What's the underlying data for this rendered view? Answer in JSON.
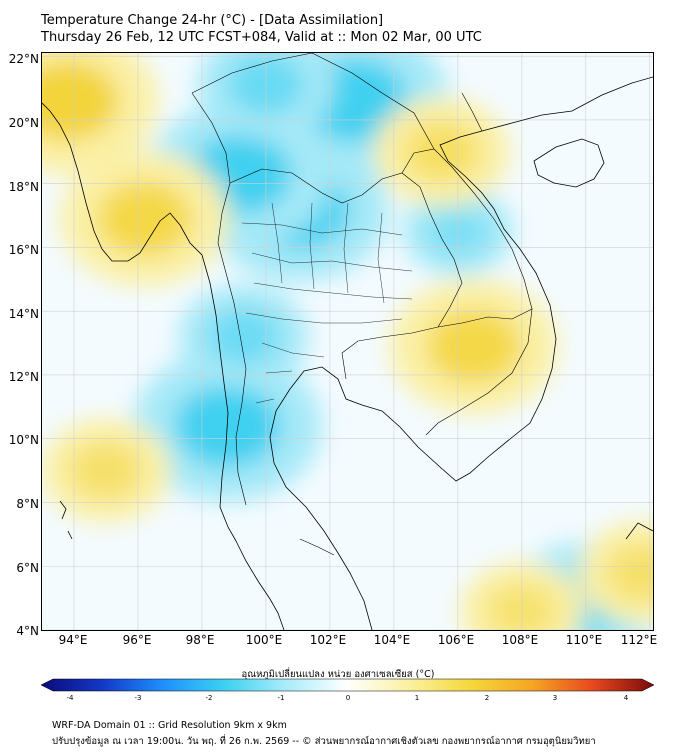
{
  "header": {
    "title": "Temperature Change 24-hr (°C) - [Data Assimilation]",
    "subtitle": "Thursday 26 Feb, 12 UTC FCST+084, Valid at :: Mon 02 Mar, 00 UTC"
  },
  "map": {
    "lat_labels": [
      "22°N",
      "20°N",
      "18°N",
      "16°N",
      "14°N",
      "12°N",
      "10°N",
      "8°N",
      "6°N",
      "4°N"
    ],
    "lon_labels": [
      "94°E",
      "96°E",
      "98°E",
      "100°E",
      "102°E",
      "104°E",
      "106°E",
      "108°E",
      "110°E",
      "112°E"
    ],
    "lat_range": [
      4,
      22.1
    ],
    "lon_range": [
      93,
      112.1
    ],
    "colors": {
      "ocean_base": "#f3fbff",
      "cool": "#3fd0f0",
      "cool_light": "#a6e9f8",
      "warm": "#f3d43a",
      "warm_light": "#fbf0a6",
      "border": "#000000",
      "grid": "#cfcfcf"
    },
    "anomaly_fields": {
      "cool": [
        {
          "lon": 101.0,
          "lat": 17.2,
          "value": -1.8
        },
        {
          "lon": 99.2,
          "lat": 18.3,
          "value": -1.8
        },
        {
          "lon": 98.8,
          "lat": 10.4,
          "value": -1.9
        },
        {
          "lon": 102.8,
          "lat": 20.6,
          "value": -1.9
        },
        {
          "lon": 100.0,
          "lat": 21.1,
          "value": -1.1
        },
        {
          "lon": 110.0,
          "lat": 4.9,
          "value": -1.3
        },
        {
          "lon": 99.3,
          "lat": 13.2,
          "value": -1.0
        },
        {
          "lon": 106.0,
          "lat": 16.5,
          "value": -0.7
        }
      ],
      "warm": [
        {
          "lon": 93.8,
          "lat": 20.6,
          "value": 1.8
        },
        {
          "lon": 96.2,
          "lat": 16.9,
          "value": 1.6
        },
        {
          "lon": 106.5,
          "lat": 12.9,
          "value": 1.6
        },
        {
          "lon": 105.5,
          "lat": 19.0,
          "value": 1.1
        },
        {
          "lon": 95.0,
          "lat": 9.0,
          "value": 1.0
        },
        {
          "lon": 111.8,
          "lat": 5.8,
          "value": 1.0
        },
        {
          "lon": 108.0,
          "lat": 4.6,
          "value": 0.9
        }
      ]
    }
  },
  "colorbar": {
    "label": "อุณหภูมิเปลี่ยนแปลง หน่วย องศาเซลเซียส (°C)",
    "ticks": [
      "-4",
      "-3",
      "-2",
      "-1",
      "0",
      "1",
      "2",
      "3",
      "4"
    ],
    "min": -4,
    "max": 4,
    "stops": [
      "#0a0a78",
      "#1438c8",
      "#1e90ff",
      "#3cd2f0",
      "#aaecfa",
      "#ffffff",
      "#fbf1a0",
      "#f5d83c",
      "#f5a623",
      "#e8481e",
      "#7a0a0a"
    ]
  },
  "footer": {
    "line1": "WRF-DA Domain 01 :: Grid Resolution 9km x 9km",
    "line2": "ปรับปรุงข้อมูล ณ เวลา 19:00น. วัน พฤ. ที่ 26 ก.พ. 2569 -- © ส่วนพยากรณ์อากาศเชิงตัวเลข กองพยากรณ์อากาศ กรมอุตุนิยมวิทยา"
  }
}
